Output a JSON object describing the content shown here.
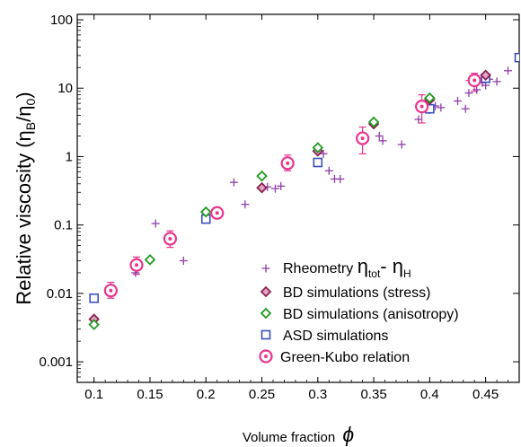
{
  "chart_data": {
    "type": "scatter",
    "xlabel": "Volume fraction",
    "xlabel_symbol": "ϕ",
    "ylabel": "Relative viscosity (η",
    "ylabel_sub1": "B",
    "ylabel_mid": "/η",
    "ylabel_sub2": "0",
    "ylabel_end": ")",
    "xlim": [
      0.085,
      0.48
    ],
    "ylim": [
      0.0005,
      120
    ],
    "yscale": "log",
    "xticks": [
      0.1,
      0.15,
      0.2,
      0.25,
      0.3,
      0.35,
      0.4,
      0.45
    ],
    "xtick_labels": [
      "0.1",
      "0.15",
      "0.2",
      "0.25",
      "0.3",
      "0.35",
      "0.4",
      "0.45"
    ],
    "yticks": [
      0.001,
      0.01,
      0.1,
      1,
      10,
      100
    ],
    "ytick_labels": [
      "0.001",
      "0.01",
      "0.1",
      "1",
      "10",
      "100"
    ],
    "legend_position": "bottom-right",
    "series": [
      {
        "name": "Rheometry",
        "name_formula": "η",
        "name_sub1": "tot",
        "name_mid": "- η",
        "name_sub2": "H",
        "marker": "plus",
        "color": "#8e3ea8",
        "x": [
          0.137,
          0.155,
          0.18,
          0.225,
          0.235,
          0.255,
          0.262,
          0.267,
          0.305,
          0.31,
          0.315,
          0.32,
          0.355,
          0.358,
          0.375,
          0.39,
          0.4,
          0.405,
          0.41,
          0.425,
          0.432,
          0.435,
          0.442,
          0.447,
          0.45,
          0.453,
          0.46,
          0.47
        ],
        "y": [
          0.02,
          0.105,
          0.03,
          0.42,
          0.2,
          0.36,
          0.34,
          0.37,
          1.1,
          0.62,
          0.47,
          0.47,
          2.0,
          1.7,
          1.5,
          3.5,
          4.8,
          5.5,
          5.2,
          6.5,
          5.0,
          8.5,
          9.5,
          12.0,
          11.0,
          13.5,
          12.5,
          18.0
        ]
      },
      {
        "name": "BD simulations (stress)",
        "marker": "diamond",
        "color": "#8a2252",
        "fill": "#e3a6c4",
        "x": [
          0.1,
          0.25,
          0.3,
          0.35,
          0.4,
          0.45
        ],
        "y": [
          0.0042,
          0.35,
          1.2,
          3.0,
          6.8,
          15.5
        ]
      },
      {
        "name": "BD simulations (anisotropy)",
        "marker": "diamond",
        "color": "#1e9a1e",
        "fill": "#ffffff",
        "x": [
          0.1,
          0.15,
          0.2,
          0.25,
          0.3,
          0.35,
          0.4
        ],
        "y": [
          0.0035,
          0.031,
          0.155,
          0.52,
          1.35,
          3.2,
          7.2
        ]
      },
      {
        "name": "ASD simulations",
        "marker": "square",
        "color": "#3a4fbf",
        "fill": "#ffffff",
        "x": [
          0.1,
          0.2,
          0.3,
          0.4,
          0.45,
          0.48
        ],
        "y": [
          0.0085,
          0.122,
          0.82,
          5.0,
          14.0,
          28.0
        ]
      },
      {
        "name": "Green-Kubo relation",
        "marker": "circle-dot",
        "color": "#e8358e",
        "fill": "#ffffff",
        "x": [
          0.115,
          0.138,
          0.168,
          0.21,
          0.273,
          0.34,
          0.393,
          0.44
        ],
        "y": [
          0.011,
          0.026,
          0.063,
          0.15,
          0.8,
          1.85,
          5.4,
          13.0
        ],
        "y_low": [
          0.0085,
          0.019,
          0.047,
          0.135,
          0.62,
          1.1,
          3.1,
          9.0
        ],
        "y_high": [
          0.0145,
          0.034,
          0.082,
          0.175,
          1.05,
          2.7,
          8.0,
          16.5
        ],
        "x_err": [
          0.006,
          0.006,
          0.006,
          0.006,
          0.006,
          0.006,
          0.006,
          0.008
        ]
      }
    ]
  }
}
